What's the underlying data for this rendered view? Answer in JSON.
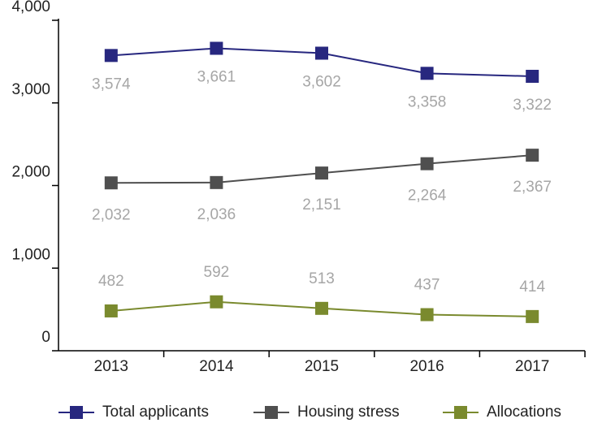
{
  "chart_data": {
    "type": "line",
    "categories": [
      "2013",
      "2014",
      "2015",
      "2016",
      "2017"
    ],
    "series": [
      {
        "name": "Total applicants",
        "color": "#27277f",
        "values": [
          3574,
          3661,
          3602,
          3358,
          3322
        ],
        "value_labels": [
          "3,574",
          "3,661",
          "3,602",
          "3,358",
          "3,322"
        ]
      },
      {
        "name": "Housing stress",
        "color": "#4f4f4f",
        "values": [
          2032,
          2036,
          2151,
          2264,
          2367
        ],
        "value_labels": [
          "2,032",
          "2,036",
          "2,151",
          "2,264",
          "2,367"
        ]
      },
      {
        "name": "Allocations",
        "color": "#7a8a2e",
        "values": [
          482,
          592,
          513,
          437,
          414
        ],
        "value_labels": [
          "482",
          "592",
          "513",
          "437",
          "414"
        ]
      }
    ],
    "ylim": [
      0,
      4000
    ],
    "yticks": [
      0,
      {
        "value": 1000,
        "label": "1,000"
      },
      {
        "value": 2000,
        "label": "2,000"
      },
      {
        "value": 3000,
        "label": "3,000"
      },
      {
        "value": 4000,
        "label": "4,000"
      }
    ],
    "legend": "bottom"
  }
}
